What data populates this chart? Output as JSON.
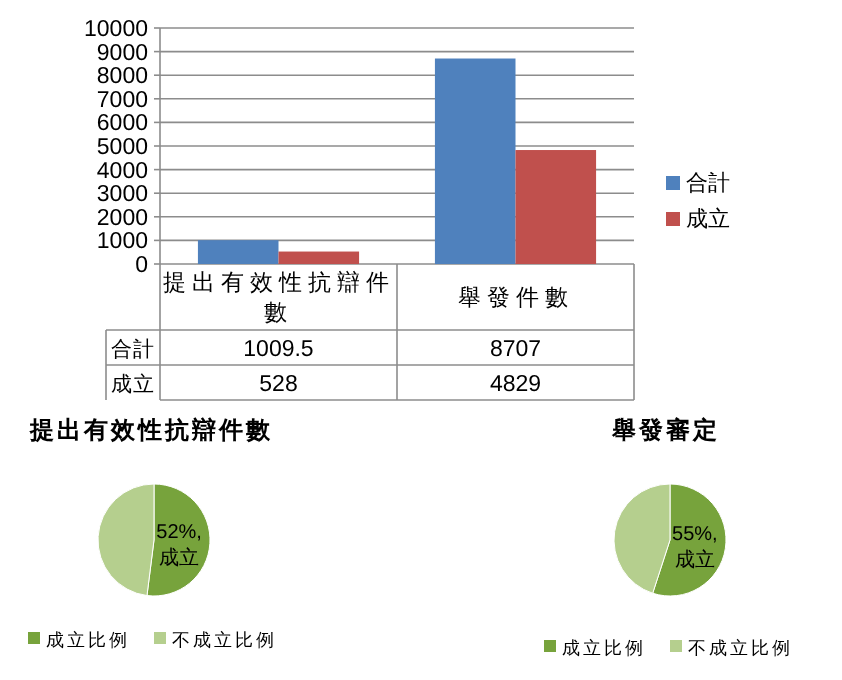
{
  "chart_data": [
    {
      "type": "bar",
      "categories": [
        "提出有效性抗辯件數",
        "舉發件數"
      ],
      "series": [
        {
          "name": "合計",
          "color": "#4f81bd",
          "values": [
            1009.5,
            8707
          ]
        },
        {
          "name": "成立",
          "color": "#c0504d",
          "values": [
            528,
            4829
          ]
        }
      ],
      "ylim": [
        0,
        10000
      ],
      "yticks": [
        0,
        1000,
        2000,
        3000,
        4000,
        5000,
        6000,
        7000,
        8000,
        9000,
        10000
      ],
      "grid": "y",
      "legend": "right",
      "data_labels": true
    },
    {
      "type": "pie",
      "title": "提出有效性抗辯件數",
      "categories": [
        "成立比例",
        "不成立比例"
      ],
      "values": [
        52,
        48
      ],
      "colors": [
        "#77a33c",
        "#b5cf8e"
      ],
      "value_labels": [
        "52%, 成立",
        null
      ],
      "legend": "bottom"
    },
    {
      "type": "pie",
      "title": "舉發審定",
      "categories": [
        "成立比例",
        "不成立比例"
      ],
      "values": [
        55,
        45
      ],
      "colors": [
        "#77a33c",
        "#b5cf8e"
      ],
      "value_labels": [
        "55%, 成立",
        null
      ],
      "legend": "bottom"
    }
  ]
}
